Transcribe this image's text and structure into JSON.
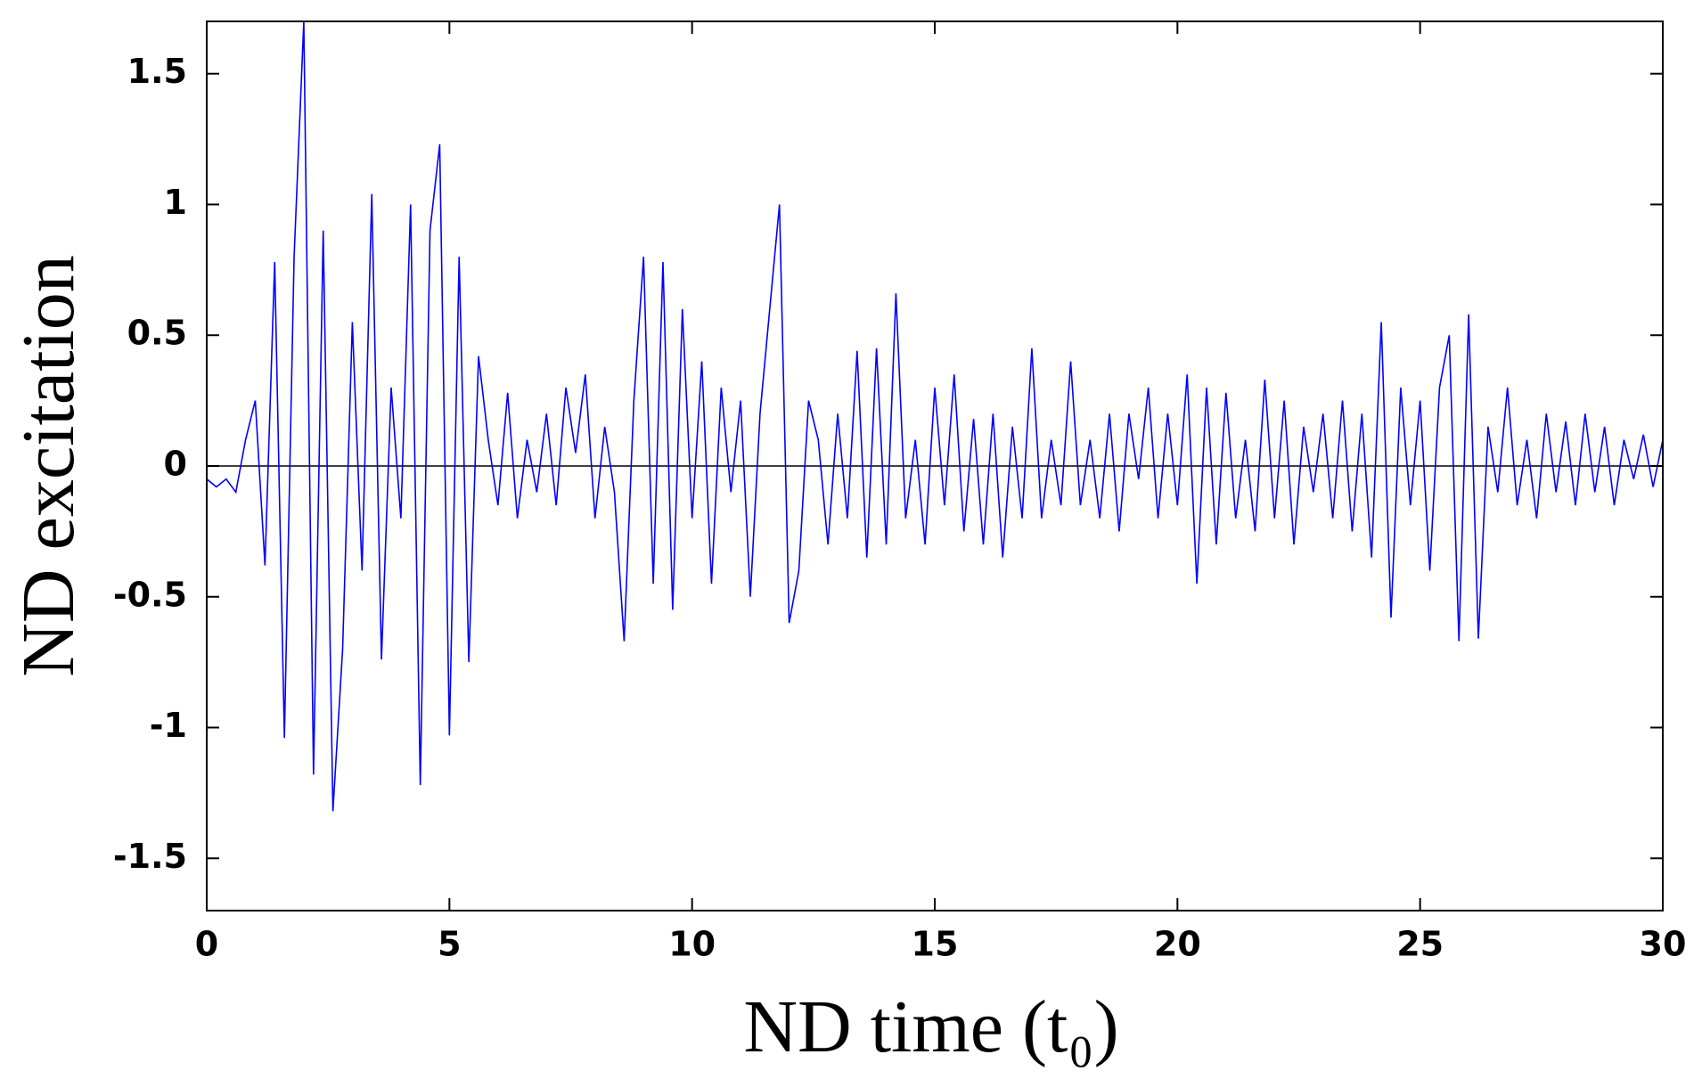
{
  "chart_data": {
    "type": "line",
    "xlabel": "ND time (t₀)",
    "ylabel": "ND excitation",
    "x": [
      0,
      0.2,
      0.4,
      0.6,
      0.8,
      1,
      1.2,
      1.4,
      1.6,
      1.8,
      2,
      2.2,
      2.4,
      2.6,
      2.8,
      3,
      3.2,
      3.4,
      3.6,
      3.8,
      4,
      4.2,
      4.4,
      4.6,
      4.8,
      5,
      5.2,
      5.4,
      5.6,
      5.8,
      6,
      6.2,
      6.4,
      6.6,
      6.8,
      7,
      7.2,
      7.4,
      7.6,
      7.8,
      8,
      8.2,
      8.4,
      8.6,
      8.8,
      9,
      9.2,
      9.4,
      9.6,
      9.8,
      10,
      10.2,
      10.4,
      10.6,
      10.8,
      11,
      11.2,
      11.4,
      11.6,
      11.8,
      12,
      12.2,
      12.4,
      12.6,
      12.8,
      13,
      13.2,
      13.4,
      13.6,
      13.8,
      14,
      14.2,
      14.4,
      14.6,
      14.8,
      15,
      15.2,
      15.4,
      15.6,
      15.8,
      16,
      16.2,
      16.4,
      16.6,
      16.8,
      17,
      17.2,
      17.4,
      17.6,
      17.8,
      18,
      18.2,
      18.4,
      18.6,
      18.8,
      19,
      19.2,
      19.4,
      19.6,
      19.8,
      20,
      20.2,
      20.4,
      20.6,
      20.8,
      21,
      21.2,
      21.4,
      21.6,
      21.8,
      22,
      22.2,
      22.4,
      22.6,
      22.8,
      23,
      23.2,
      23.4,
      23.6,
      23.8,
      24,
      24.2,
      24.4,
      24.6,
      24.8,
      25,
      25.2,
      25.4,
      25.6,
      25.8,
      26,
      26.2,
      26.4,
      26.6,
      26.8,
      27,
      27.2,
      27.4,
      27.6,
      27.8,
      28,
      28.2,
      28.4,
      28.6,
      28.8,
      29,
      29.2,
      29.4,
      29.6,
      29.8,
      30
    ],
    "series": [
      {
        "color": "#0000ff",
        "values": [
          -0.05,
          -0.08,
          -0.05,
          -0.1,
          0.1,
          0.25,
          -0.38,
          0.78,
          -1.04,
          0.8,
          1.7,
          -1.18,
          0.9,
          -1.32,
          -0.7,
          0.55,
          -0.4,
          1.04,
          -0.74,
          0.3,
          -0.2,
          1.0,
          -1.22,
          0.9,
          1.23,
          -1.03,
          0.8,
          -0.75,
          0.42,
          0.1,
          -0.15,
          0.28,
          -0.2,
          0.1,
          -0.1,
          0.2,
          -0.15,
          0.3,
          0.05,
          0.35,
          -0.2,
          0.15,
          -0.1,
          -0.67,
          0.25,
          0.8,
          -0.45,
          0.78,
          -0.55,
          0.6,
          -0.2,
          0.4,
          -0.45,
          0.3,
          -0.1,
          0.25,
          -0.5,
          0.2,
          0.6,
          1.0,
          -0.6,
          -0.4,
          0.25,
          0.1,
          -0.3,
          0.2,
          -0.2,
          0.44,
          -0.35,
          0.45,
          -0.3,
          0.66,
          -0.2,
          0.1,
          -0.3,
          0.3,
          -0.15,
          0.35,
          -0.25,
          0.18,
          -0.3,
          0.2,
          -0.35,
          0.15,
          -0.2,
          0.45,
          -0.2,
          0.1,
          -0.15,
          0.4,
          -0.15,
          0.1,
          -0.2,
          0.2,
          -0.25,
          0.2,
          -0.05,
          0.3,
          -0.2,
          0.2,
          -0.15,
          0.35,
          -0.45,
          0.3,
          -0.3,
          0.28,
          -0.2,
          0.1,
          -0.25,
          0.33,
          -0.2,
          0.25,
          -0.3,
          0.15,
          -0.1,
          0.2,
          -0.2,
          0.25,
          -0.25,
          0.2,
          -0.35,
          0.55,
          -0.58,
          0.3,
          -0.15,
          0.25,
          -0.4,
          0.3,
          0.5,
          -0.67,
          0.58,
          -0.66,
          0.15,
          -0.1,
          0.3,
          -0.15,
          0.1,
          -0.2,
          0.2,
          -0.1,
          0.17,
          -0.15,
          0.2,
          -0.1,
          0.15,
          -0.15,
          0.1,
          -0.05,
          0.12,
          -0.08,
          0.1
        ]
      }
    ],
    "xlim": [
      0,
      30
    ],
    "xticks": [
      0,
      5,
      10,
      15,
      20,
      25,
      30
    ],
    "ylim": [
      -1.7,
      1.7
    ],
    "yticks": [
      -1.5,
      -1,
      -0.5,
      0,
      0.5,
      1,
      1.5
    ],
    "grid": false
  }
}
